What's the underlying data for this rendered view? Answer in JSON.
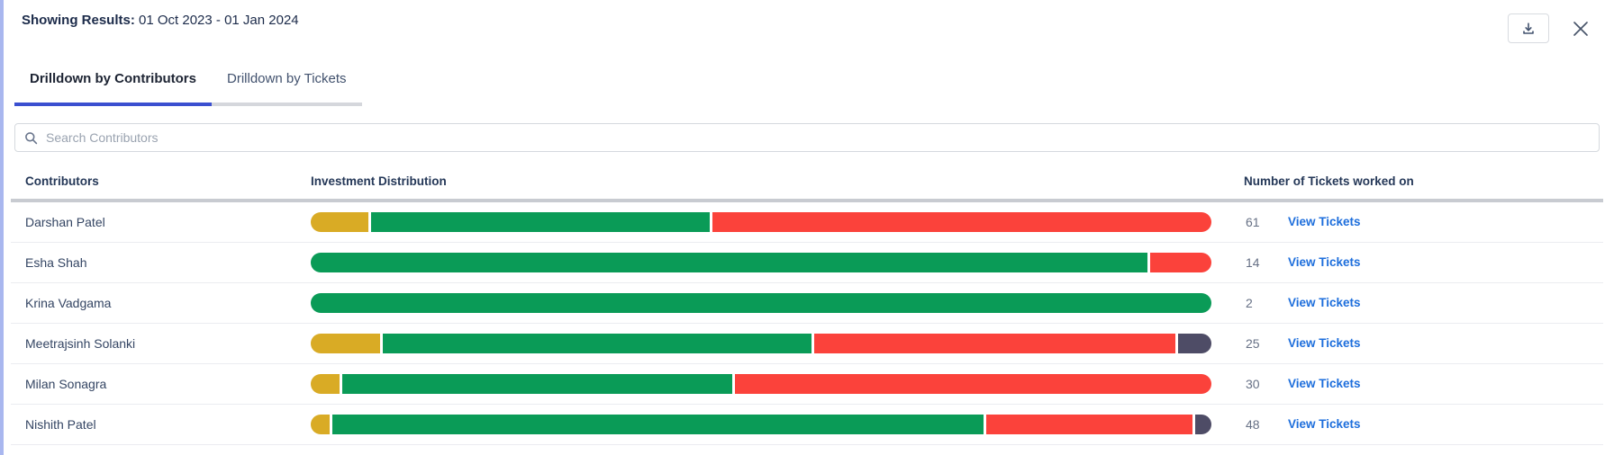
{
  "header": {
    "label": "Showing Results:",
    "date_range": "01 Oct 2023 - 01 Jan 2024"
  },
  "tabs": [
    {
      "label": "Drilldown by Contributors",
      "active": true
    },
    {
      "label": "Drilldown by Tickets",
      "active": false
    }
  ],
  "search": {
    "placeholder": "Search Contributors",
    "value": ""
  },
  "table": {
    "columns": [
      "Contributors",
      "Investment Distribution",
      "Number of Tickets worked on"
    ],
    "link_label": "View Tickets",
    "rows": [
      {
        "name": "Darshan Patel",
        "tickets": "61",
        "segments": [
          {
            "color": "gold",
            "pct": 6.4
          },
          {
            "color": "green",
            "pct": 37.9
          },
          {
            "color": "red",
            "pct": 55.7
          }
        ]
      },
      {
        "name": "Esha Shah",
        "tickets": "14",
        "segments": [
          {
            "color": "green",
            "pct": 93.2
          },
          {
            "color": "red",
            "pct": 6.8
          }
        ]
      },
      {
        "name": "Krina Vadgama",
        "tickets": "2",
        "segments": [
          {
            "color": "green",
            "pct": 100
          }
        ]
      },
      {
        "name": "Meetrajsinh Solanki",
        "tickets": "25",
        "segments": [
          {
            "color": "gold",
            "pct": 7.8
          },
          {
            "color": "green",
            "pct": 48.0
          },
          {
            "color": "red",
            "pct": 40.5
          },
          {
            "color": "slate",
            "pct": 3.7
          }
        ]
      },
      {
        "name": "Milan Sonagra",
        "tickets": "30",
        "segments": [
          {
            "color": "gold",
            "pct": 3.2
          },
          {
            "color": "green",
            "pct": 43.6
          },
          {
            "color": "red",
            "pct": 53.2
          }
        ]
      },
      {
        "name": "Nishith Patel",
        "tickets": "48",
        "segments": [
          {
            "color": "gold",
            "pct": 2.1
          },
          {
            "color": "green",
            "pct": 73.0
          },
          {
            "color": "red",
            "pct": 23.1
          },
          {
            "color": "slate",
            "pct": 1.8
          }
        ]
      }
    ]
  },
  "colors": {
    "gold": "#d9ab25",
    "green": "#0a9b57",
    "red": "#fb423b",
    "slate": "#4e4c66",
    "tab_underline": "#3b4fd0",
    "link": "#1d6edc",
    "left_edge": "#a9b7ef"
  }
}
